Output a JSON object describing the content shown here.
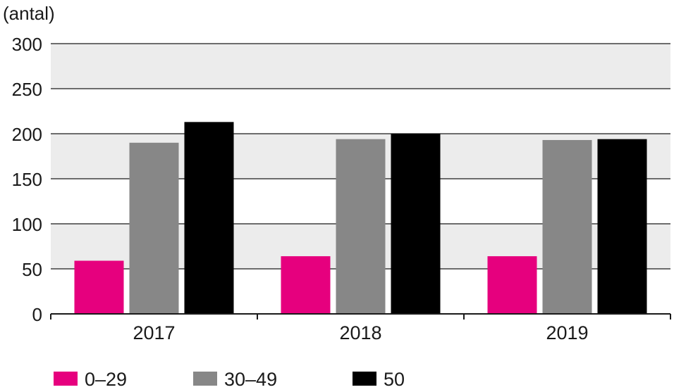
{
  "chart_data": {
    "type": "bar",
    "unit_label": "(antal)",
    "categories": [
      "2017",
      "2018",
      "2019"
    ],
    "series": [
      {
        "name": "0–29",
        "color": "#e6007e",
        "values": [
          59,
          64,
          64
        ]
      },
      {
        "name": "30–49",
        "color": "#878787",
        "values": [
          190,
          194,
          193
        ]
      },
      {
        "name": "50",
        "color": "#000000",
        "values": [
          213,
          200,
          194
        ]
      }
    ],
    "ylim": [
      0,
      300
    ],
    "yticks": [
      "0",
      "50",
      "100",
      "150",
      "200",
      "250",
      "300"
    ],
    "grid": true,
    "band_color": "#ececec",
    "legend_position": "bottom"
  }
}
